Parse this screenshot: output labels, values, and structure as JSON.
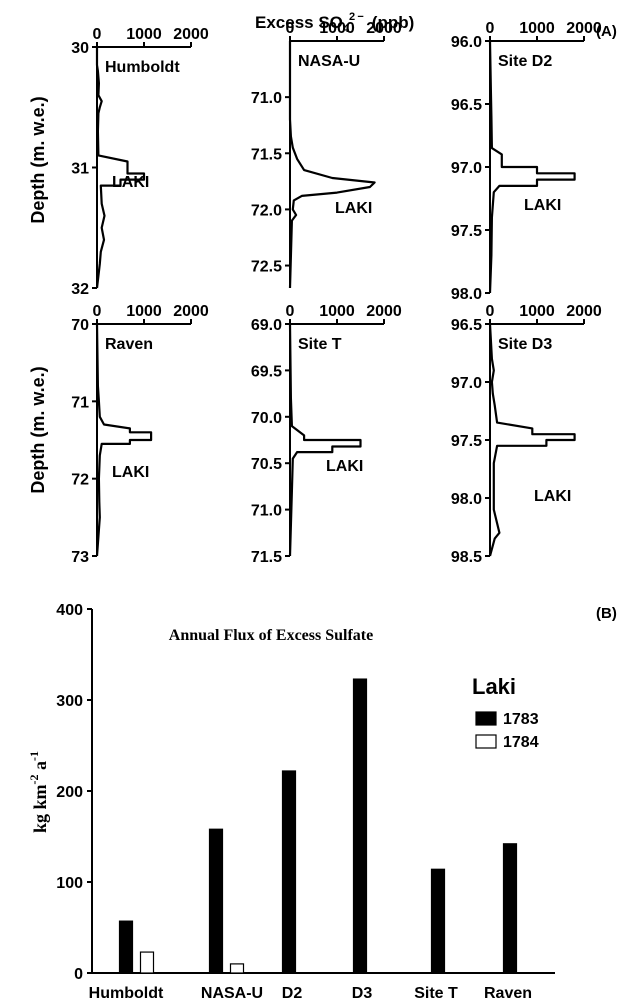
{
  "panel_a": {
    "header_prefix": "Excess SO",
    "header_sub": "4",
    "header_sup": "2 −",
    "header_units": "(ppb)",
    "panel_letter": "(A)",
    "ylabel": "Depth (m. w.e.)",
    "x_ticks": [
      "0",
      "1000",
      "2000"
    ],
    "event_label": "LAKI"
  },
  "panel_b": {
    "panel_letter": "(B)",
    "ylabel_base": "kg km",
    "ylabel_exp1": "-2",
    "ylabel_mid": " a",
    "ylabel_exp2": "-1"
  },
  "chart_data": [
    {
      "type": "line",
      "site": "Humboldt",
      "xlim": [
        0,
        2000
      ],
      "ylim": [
        30,
        32
      ],
      "y_inverted": true,
      "x_ticks": [
        0,
        1000,
        2000
      ],
      "y_ticks": [
        "30",
        "31",
        "32"
      ],
      "y_tick_values": [
        30,
        31,
        32
      ],
      "annotation": "LAKI",
      "profile": [
        [
          30,
          0
        ],
        [
          30.15,
          0
        ],
        [
          30.2,
          20
        ],
        [
          30.3,
          40
        ],
        [
          30.4,
          30
        ],
        [
          30.45,
          100
        ],
        [
          30.5,
          60
        ],
        [
          30.55,
          30
        ],
        [
          30.7,
          20
        ],
        [
          30.9,
          30
        ],
        [
          30.95,
          650
        ],
        [
          31.05,
          650
        ],
        [
          31.05,
          1000
        ],
        [
          31.1,
          1000
        ],
        [
          31.1,
          500
        ],
        [
          31.15,
          500
        ],
        [
          31.15,
          80
        ],
        [
          31.3,
          100
        ],
        [
          31.4,
          160
        ],
        [
          31.5,
          100
        ],
        [
          31.6,
          150
        ],
        [
          31.7,
          80
        ],
        [
          31.8,
          60
        ],
        [
          32,
          0
        ]
      ]
    },
    {
      "type": "line",
      "site": "NASA-U",
      "xlim": [
        0,
        2000
      ],
      "ylim": [
        70.5,
        72.7
      ],
      "y_inverted": true,
      "x_ticks": [
        0,
        1000,
        2000
      ],
      "y_ticks": [
        "71.0",
        "71.5",
        "72.0",
        "72.5"
      ],
      "y_tick_values": [
        71.0,
        71.5,
        72.0,
        72.5
      ],
      "annotation": "LAKI",
      "profile": [
        [
          70.5,
          0
        ],
        [
          71.2,
          0
        ],
        [
          71.35,
          20
        ],
        [
          71.45,
          60
        ],
        [
          71.55,
          150
        ],
        [
          71.65,
          300
        ],
        [
          71.72,
          900
        ],
        [
          71.76,
          1800
        ],
        [
          71.8,
          1700
        ],
        [
          71.85,
          1000
        ],
        [
          71.88,
          250
        ],
        [
          71.92,
          80
        ],
        [
          72.0,
          60
        ],
        [
          72.05,
          130
        ],
        [
          72.1,
          40
        ],
        [
          72.7,
          0
        ]
      ]
    },
    {
      "type": "line",
      "site": "Site D2",
      "xlim": [
        0,
        2000
      ],
      "ylim": [
        96.0,
        98.0
      ],
      "y_inverted": true,
      "x_ticks": [
        0,
        1000,
        2000
      ],
      "y_ticks": [
        "96.0",
        "96.5",
        "97.0",
        "97.5",
        "98.0"
      ],
      "y_tick_values": [
        96.0,
        96.5,
        97.0,
        97.5,
        98.0
      ],
      "annotation": "LAKI",
      "profile": [
        [
          96.0,
          0
        ],
        [
          96.4,
          20
        ],
        [
          96.6,
          30
        ],
        [
          96.85,
          40
        ],
        [
          96.9,
          250
        ],
        [
          97.0,
          250
        ],
        [
          97.0,
          1000
        ],
        [
          97.05,
          1000
        ],
        [
          97.05,
          1800
        ],
        [
          97.1,
          1800
        ],
        [
          97.1,
          1000
        ],
        [
          97.15,
          1000
        ],
        [
          97.15,
          200
        ],
        [
          97.2,
          80
        ],
        [
          97.4,
          40
        ],
        [
          97.7,
          30
        ],
        [
          98.0,
          0
        ]
      ]
    },
    {
      "type": "line",
      "site": "Raven",
      "xlim": [
        0,
        2000
      ],
      "ylim": [
        70,
        73
      ],
      "y_inverted": true,
      "x_ticks": [
        0,
        1000,
        2000
      ],
      "y_ticks": [
        "70",
        "71",
        "72",
        "73"
      ],
      "y_tick_values": [
        70,
        71,
        72,
        73
      ],
      "annotation": "LAKI",
      "profile": [
        [
          70,
          0
        ],
        [
          70.8,
          20
        ],
        [
          71.0,
          40
        ],
        [
          71.2,
          60
        ],
        [
          71.3,
          150
        ],
        [
          71.35,
          700
        ],
        [
          71.4,
          700
        ],
        [
          71.4,
          1150
        ],
        [
          71.5,
          1150
        ],
        [
          71.5,
          700
        ],
        [
          71.55,
          700
        ],
        [
          71.55,
          100
        ],
        [
          71.7,
          60
        ],
        [
          72.0,
          40
        ],
        [
          72.3,
          50
        ],
        [
          72.5,
          60
        ],
        [
          73,
          0
        ]
      ]
    },
    {
      "type": "line",
      "site": "Site T",
      "xlim": [
        0,
        2000
      ],
      "ylim": [
        69.0,
        71.5
      ],
      "y_inverted": true,
      "x_ticks": [
        0,
        1000,
        2000
      ],
      "y_ticks": [
        "69.0",
        "69.5",
        "70.0",
        "70.5",
        "71.0",
        "71.5"
      ],
      "y_tick_values": [
        69.0,
        69.5,
        70.0,
        70.5,
        71.0,
        71.5
      ],
      "annotation": "LAKI",
      "profile": [
        [
          69.0,
          0
        ],
        [
          69.8,
          20
        ],
        [
          70.1,
          40
        ],
        [
          70.2,
          300
        ],
        [
          70.25,
          300
        ],
        [
          70.25,
          1500
        ],
        [
          70.32,
          1500
        ],
        [
          70.32,
          900
        ],
        [
          70.38,
          900
        ],
        [
          70.38,
          150
        ],
        [
          70.45,
          60
        ],
        [
          70.8,
          40
        ],
        [
          71.5,
          0
        ]
      ]
    },
    {
      "type": "line",
      "site": "Site D3",
      "xlim": [
        0,
        2000
      ],
      "ylim": [
        96.5,
        98.5
      ],
      "y_inverted": true,
      "x_ticks": [
        0,
        1000,
        2000
      ],
      "y_ticks": [
        "96.5",
        "97.0",
        "97.5",
        "98.0",
        "98.5"
      ],
      "y_tick_values": [
        96.5,
        97.0,
        97.5,
        98.0,
        98.5
      ],
      "annotation": "LAKI",
      "profile": [
        [
          96.5,
          0
        ],
        [
          96.8,
          40
        ],
        [
          96.9,
          80
        ],
        [
          97.0,
          40
        ],
        [
          97.1,
          60
        ],
        [
          97.2,
          100
        ],
        [
          97.35,
          150
        ],
        [
          97.4,
          900
        ],
        [
          97.45,
          900
        ],
        [
          97.45,
          1800
        ],
        [
          97.5,
          1800
        ],
        [
          97.5,
          1200
        ],
        [
          97.55,
          1200
        ],
        [
          97.55,
          150
        ],
        [
          97.7,
          80
        ],
        [
          98.1,
          80
        ],
        [
          98.3,
          200
        ],
        [
          98.35,
          100
        ],
        [
          98.5,
          0
        ]
      ]
    },
    {
      "type": "bar",
      "title": "Annual Flux of Excess Sulfate",
      "categories": [
        "Humboldt",
        "NASA-U",
        "D2",
        "D3",
        "Site T",
        "Raven"
      ],
      "series": [
        {
          "name": "1783",
          "values": [
            57,
            158,
            222,
            323,
            114,
            142
          ],
          "color": "#000000"
        },
        {
          "name": "1784",
          "values": [
            23,
            10,
            0,
            0,
            0,
            0
          ],
          "color": "#ffffff"
        }
      ],
      "legend_title": "Laki",
      "legend_position": "top-right",
      "ylim": [
        0,
        400
      ],
      "y_ticks": [
        "0",
        "100",
        "200",
        "300",
        "400"
      ],
      "y_tick_values": [
        0,
        100,
        200,
        300,
        400
      ]
    }
  ]
}
